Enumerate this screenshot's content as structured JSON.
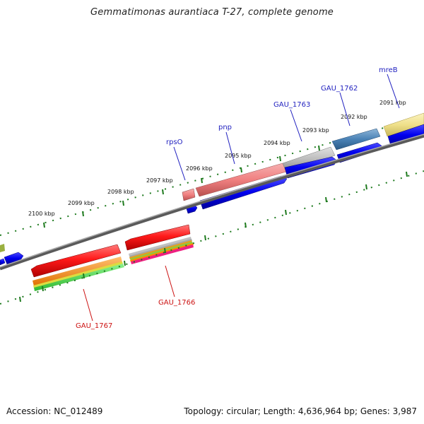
{
  "title": "Gemmatimonas aurantiaca T-27, complete genome",
  "accession": "Accession: NC_012489",
  "topology": "Topology: circular; Length: 4,636,964 bp; Genes: 3,987",
  "tick_labels": [
    "2100 kbp",
    "2099 kbp",
    "2098 kbp",
    "2097 kbp",
    "2096 kbp",
    "2095 kbp",
    "2094 kbp",
    "2093 kbp",
    "2092 kbp",
    "2091 kbp"
  ],
  "forward_gene_labels": [
    "rpsO",
    "pnp",
    "GAU_1763",
    "GAU_1762",
    "mreB"
  ],
  "reverse_gene_labels": [
    "GAU_1766",
    "GAU_1767"
  ],
  "colors": {
    "cds_blue": "#0000ee",
    "gene_red": "#ee1111",
    "label_blue": "#1f1fbf",
    "label_red": "#cc1111",
    "tick_green": "#1e7a1e",
    "backbone_gray": "#7a7a7a"
  }
}
